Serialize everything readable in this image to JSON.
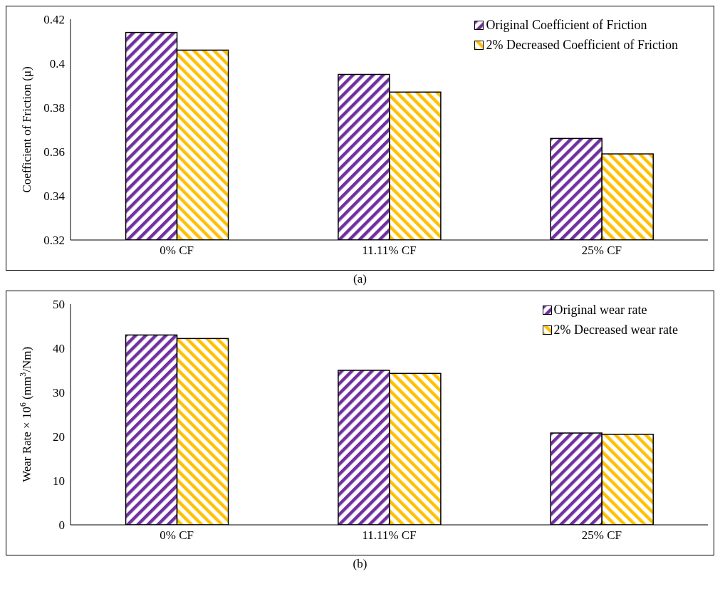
{
  "chart_data": [
    {
      "type": "bar",
      "ylabel": "Coefficient of Friction (μ)",
      "categories": [
        "0% CF",
        "11.11% CF",
        "25% CF"
      ],
      "series": [
        {
          "name": "Original Coefficient of Friction",
          "color": "#7030a0",
          "values": [
            0.414,
            0.395,
            0.366
          ]
        },
        {
          "name": "2% Decreased Coefficient of Friction",
          "color": "#ffc000",
          "values": [
            0.406,
            0.387,
            0.359
          ]
        }
      ],
      "ylim": [
        0.32,
        0.42
      ],
      "yticks": [
        0.32,
        0.34,
        0.36,
        0.38,
        0.4,
        0.42
      ],
      "grid": false,
      "legend": "top right",
      "annotations": [
        "(a)"
      ]
    },
    {
      "type": "bar",
      "ylabel": "Wear Rate × 10$^{6}$ (mm$^{3}$/Nm)",
      "categories": [
        "0% CF",
        "11.11% CF",
        "25% CF"
      ],
      "series": [
        {
          "name": "Original wear rate",
          "color": "#7030a0",
          "values": [
            43.0,
            35.0,
            20.8
          ]
        },
        {
          "name": "2% Decreased wear rate",
          "color": "#ffc000",
          "values": [
            42.2,
            34.3,
            20.5
          ]
        }
      ],
      "ylim": [
        0,
        50
      ],
      "yticks": [
        0,
        10,
        20,
        30,
        40,
        50
      ],
      "grid": false,
      "legend": "top right",
      "annotations": [
        "(b)"
      ]
    }
  ]
}
